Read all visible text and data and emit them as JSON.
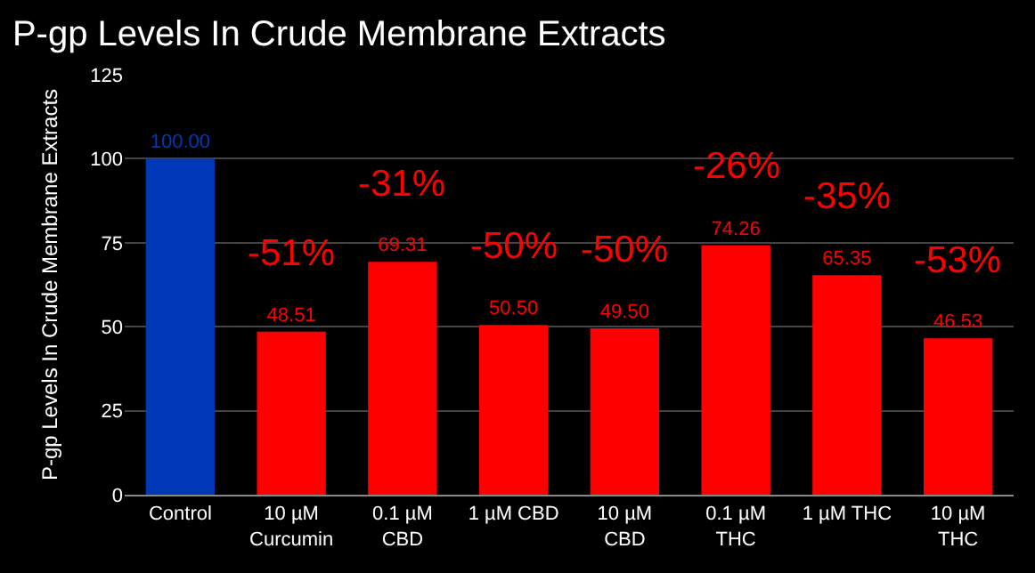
{
  "chart_data": {
    "type": "bar",
    "title": "P-gp Levels In Crude Membrane Extracts",
    "ylabel": "P-gp Levels In Crude Membrane Extracts",
    "categories": [
      "Control",
      "10 µM\nCurcumin",
      "0.1 µM\nCBD",
      "1 µM CBD",
      "10 µM\nCBD",
      "0.1 µM\nTHC",
      "1 µM THC",
      "10 µM\nTHC"
    ],
    "values": [
      100.0,
      48.51,
      69.31,
      50.5,
      49.5,
      74.26,
      65.35,
      46.53
    ],
    "colors": [
      "#0039b8",
      "#ff0000",
      "#ff0000",
      "#ff0000",
      "#ff0000",
      "#ff0000",
      "#ff0000",
      "#ff0000"
    ],
    "value_labels": [
      "100.00",
      "48.51",
      "69.31",
      "50.50",
      "49.50",
      "74.26",
      "65.35",
      "46.53"
    ],
    "ylim": [
      0,
      125
    ],
    "yticks": [
      0,
      25,
      50,
      75,
      100,
      125
    ],
    "grid": "y",
    "annotations": [
      "-51%",
      "-31%",
      "-50%",
      "-50%",
      "-26%",
      "-35%",
      "-53%"
    ]
  }
}
